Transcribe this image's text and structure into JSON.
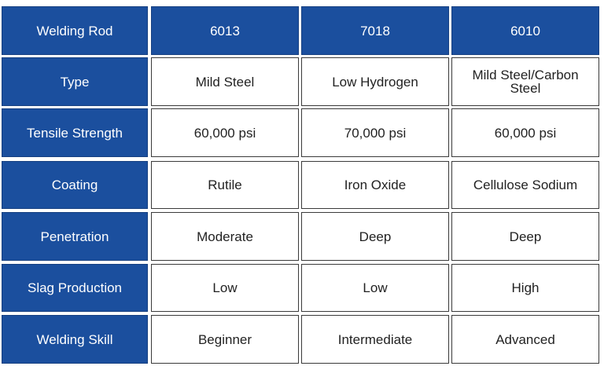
{
  "table": {
    "header": [
      "Welding Rod",
      "6013",
      "7018",
      "6010"
    ],
    "rows": [
      [
        "Type",
        "Mild Steel",
        "Low Hydrogen",
        "Mild Steel/Carbon Steel"
      ],
      [
        "Tensile Strength",
        "60,000 psi",
        "70,000 psi",
        "60,000 psi"
      ],
      [
        "Coating",
        "Rutile",
        "Iron Oxide",
        "Cellulose Sodium"
      ],
      [
        "Penetration",
        "Moderate",
        "Deep",
        "Deep"
      ],
      [
        "Slag Production",
        "Low",
        "Low",
        "High"
      ],
      [
        "Welding Skill",
        "Beginner",
        "Intermediate",
        "Advanced"
      ]
    ]
  }
}
